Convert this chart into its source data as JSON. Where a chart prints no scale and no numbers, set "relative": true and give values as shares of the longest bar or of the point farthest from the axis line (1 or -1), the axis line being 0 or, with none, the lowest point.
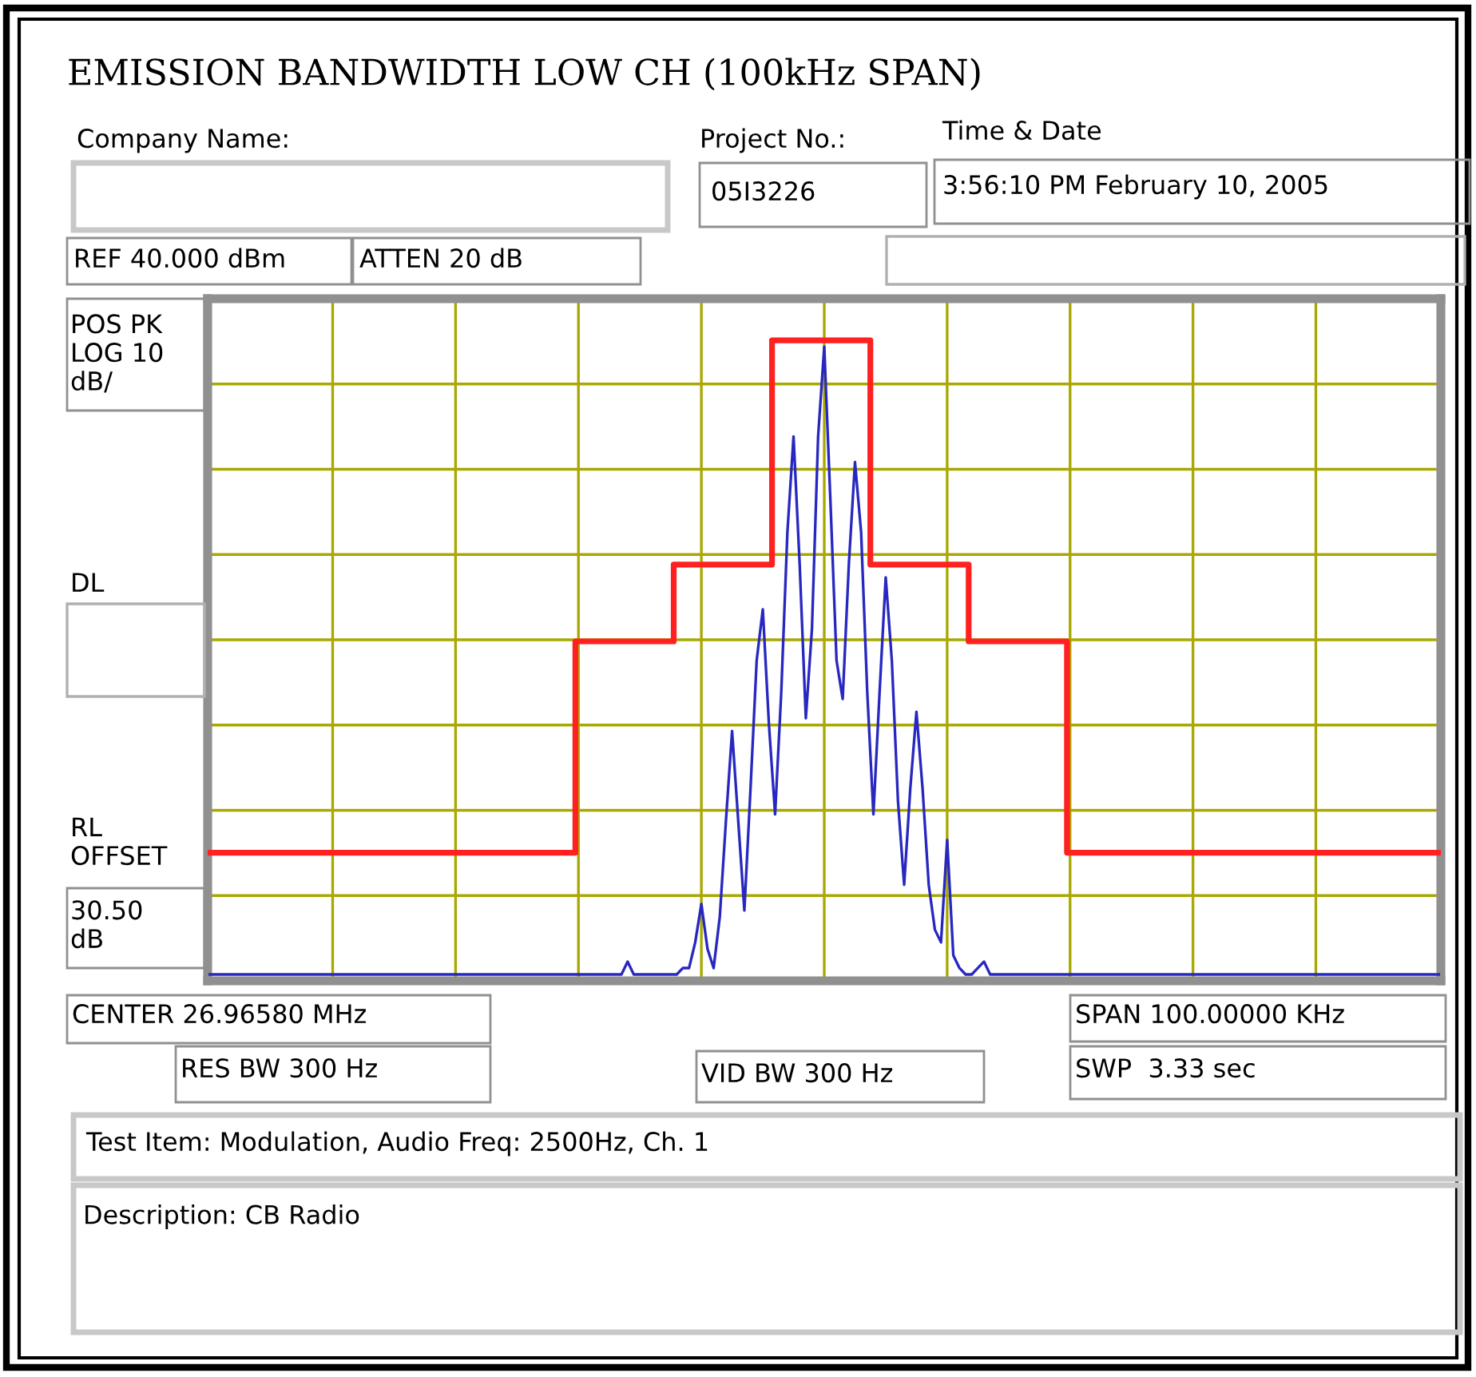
{
  "chart_data": {
    "type": "line",
    "title": "EMISSION BANDWIDTH LOW CH (100kHz SPAN)",
    "relative": true,
    "grid": true,
    "annotations": [
      "Company Name:",
      "Project No.:",
      "05I3226",
      "Time & Date",
      "3:56:10 PM February 10, 2005",
      "REF 40.000 dBm",
      "ATTEN 20 dB",
      "POS PK\nLOG 10\ndB/",
      "DL",
      "RL\nOFFSET",
      "30.50\ndB",
      "CENTER 26.96580 MHz",
      "SPAN 100.00000 KHz",
      "RES BW 300 Hz",
      "VID BW 300 Hz",
      "SWP  3.33 sec",
      "Test Item: Modulation, Audio Freq: 2500Hz, Ch. 1",
      "Description: CB Radio"
    ],
    "categories": [
      null,
      null,
      null,
      null,
      null,
      null,
      null,
      null,
      null,
      null,
      null,
      null,
      null,
      null,
      null,
      null,
      null,
      null,
      null,
      null,
      null,
      null,
      null,
      null,
      null,
      null,
      null,
      null,
      null,
      null,
      null,
      null,
      null,
      null,
      null,
      null,
      null,
      null,
      null,
      null,
      null,
      null,
      null,
      null,
      null,
      null,
      null,
      null,
      null,
      null,
      null,
      null,
      null,
      null,
      null,
      null,
      null,
      null,
      null,
      null,
      null,
      null,
      null,
      null,
      null,
      null,
      null,
      null,
      null,
      null,
      null,
      null,
      null,
      null,
      null,
      null,
      null,
      null,
      null,
      null,
      null,
      null,
      null,
      null,
      null,
      null,
      null,
      null,
      null,
      null,
      null,
      null,
      null,
      null,
      null,
      null,
      null,
      null,
      null,
      null,
      null,
      null,
      null,
      null,
      null,
      null,
      null,
      null,
      null,
      null,
      null,
      null,
      null,
      null,
      null,
      null,
      null,
      null,
      null,
      null,
      null,
      null,
      null,
      null,
      null,
      null,
      null,
      null,
      null,
      null,
      null,
      null,
      null,
      null,
      null,
      null,
      null,
      null,
      null,
      null,
      null,
      null,
      null,
      null,
      null,
      null,
      null,
      null,
      null,
      null,
      null,
      null,
      null,
      null,
      null,
      null,
      null,
      null,
      null,
      null,
      null,
      null,
      null,
      null,
      null,
      null,
      null,
      null,
      null,
      null,
      null,
      null,
      null,
      null,
      null,
      null,
      null,
      null,
      null,
      null,
      null,
      null,
      null,
      null,
      null,
      null,
      null,
      null,
      null,
      null,
      null,
      null,
      null,
      null,
      null,
      null,
      null,
      null,
      null,
      null,
      null
    ],
    "series": [
      {
        "type": "step",
        "color": "#ff2020",
        "values": [
          0.2,
          0.2,
          0.2,
          0.2,
          0.2,
          0.2,
          0.2,
          0.2,
          0.2,
          0.2,
          0.2,
          0.2,
          0.2,
          0.2,
          0.2,
          0.2,
          0.2,
          0.2,
          0.2,
          0.2,
          0.2,
          0.2,
          0.2,
          0.2,
          0.2,
          0.2,
          0.2,
          0.2,
          0.2,
          0.2,
          0.2,
          0.2,
          0.2,
          0.2,
          0.2,
          0.2,
          0.2,
          0.2,
          0.2,
          0.2,
          0.2,
          0.2,
          0.2,
          0.2,
          0.2,
          0.2,
          0.2,
          0.2,
          0.2,
          0.2,
          0.2,
          0.2,
          0.2,
          0.2,
          0.2,
          0.2,
          0.2,
          0.2,
          0.2,
          0.2,
          0.53,
          0.53,
          0.53,
          0.53,
          0.53,
          0.53,
          0.53,
          0.53,
          0.53,
          0.53,
          0.53,
          0.53,
          0.53,
          0.53,
          0.53,
          0.53,
          0.65,
          0.65,
          0.65,
          0.65,
          0.65,
          0.65,
          0.65,
          0.65,
          0.65,
          0.65,
          0.65,
          0.65,
          0.65,
          0.65,
          0.65,
          0.65,
          1,
          1,
          1,
          1,
          1,
          1,
          1,
          1,
          1,
          1,
          1,
          1,
          1,
          1,
          1,
          1,
          0.65,
          0.65,
          0.65,
          0.65,
          0.65,
          0.65,
          0.65,
          0.65,
          0.65,
          0.65,
          0.65,
          0.65,
          0.65,
          0.65,
          0.65,
          0.65,
          0.53,
          0.53,
          0.53,
          0.53,
          0.53,
          0.53,
          0.53,
          0.53,
          0.53,
          0.53,
          0.53,
          0.53,
          0.53,
          0.53,
          0.53,
          0.53,
          0.2,
          0.2,
          0.2,
          0.2,
          0.2,
          0.2,
          0.2,
          0.2,
          0.2,
          0.2,
          0.2,
          0.2,
          0.2,
          0.2,
          0.2,
          0.2,
          0.2,
          0.2,
          0.2,
          0.2,
          0.2,
          0.2,
          0.2,
          0.2,
          0.2,
          0.2,
          0.2,
          0.2,
          0.2,
          0.2,
          0.2,
          0.2,
          0.2,
          0.2,
          0.2,
          0.2,
          0.2,
          0.2,
          0.2,
          0.2,
          0.2,
          0.2,
          0.2,
          0.2,
          0.2,
          0.2,
          0.2,
          0.2,
          0.2,
          0.2,
          0.2,
          0.2,
          0.2,
          0.2,
          0.2,
          0.2,
          0.2,
          0.2,
          0.2,
          0.2,
          0.2
        ]
      },
      {
        "color": "#2828c0",
        "values": [
          0.01,
          0.01,
          0.01,
          0.01,
          0.01,
          0.01,
          0.01,
          0.01,
          0.01,
          0.01,
          0.01,
          0.01,
          0.01,
          0.01,
          0.01,
          0.01,
          0.01,
          0.01,
          0.01,
          0.01,
          0.01,
          0.01,
          0.01,
          0.01,
          0.01,
          0.01,
          0.01,
          0.01,
          0.01,
          0.01,
          0.01,
          0.01,
          0.01,
          0.01,
          0.01,
          0.01,
          0.01,
          0.01,
          0.01,
          0.01,
          0.01,
          0.01,
          0.01,
          0.01,
          0.01,
          0.01,
          0.01,
          0.01,
          0.01,
          0.01,
          0.01,
          0.01,
          0.01,
          0.01,
          0.01,
          0.01,
          0.01,
          0.01,
          0.01,
          0.01,
          0.01,
          0.01,
          0.01,
          0.01,
          0.01,
          0.01,
          0.01,
          0.01,
          0.03,
          0.01,
          0.01,
          0.01,
          0.01,
          0.01,
          0.01,
          0.01,
          0.01,
          0.02,
          0.02,
          0.06,
          0.12,
          0.05,
          0.02,
          0.1,
          0.25,
          0.39,
          0.25,
          0.11,
          0.3,
          0.5,
          0.58,
          0.4,
          0.26,
          0.45,
          0.7,
          0.85,
          0.65,
          0.41,
          0.55,
          0.85,
          0.99,
          0.75,
          0.5,
          0.44,
          0.65,
          0.81,
          0.7,
          0.45,
          0.26,
          0.45,
          0.63,
          0.5,
          0.28,
          0.15,
          0.3,
          0.42,
          0.3,
          0.15,
          0.08,
          0.06,
          0.22,
          0.04,
          0.02,
          0.01,
          0.01,
          0.02,
          0.03,
          0.01,
          0.01,
          0.01,
          0.01,
          0.01,
          0.01,
          0.01,
          0.01,
          0.01,
          0.01,
          0.01,
          0.01,
          0.01,
          0.01,
          0.01,
          0.01,
          0.01,
          0.01,
          0.01,
          0.01,
          0.01,
          0.01,
          0.01,
          0.01,
          0.01,
          0.01,
          0.01,
          0.01,
          0.01,
          0.01,
          0.01,
          0.01,
          0.01,
          0.01,
          0.01,
          0.01,
          0.01,
          0.01,
          0.01,
          0.01,
          0.01,
          0.01,
          0.01,
          0.01,
          0.01,
          0.01,
          0.01,
          0.01,
          0.01,
          0.01,
          0.01,
          0.01,
          0.01,
          0.01,
          0.01,
          0.01,
          0.01,
          0.01,
          0.01,
          0.01,
          0.01,
          0.01,
          0.01,
          0.01,
          0.01,
          0.01,
          0.01,
          0.01,
          0.01,
          0.01,
          0.01,
          0.01,
          0.01,
          0.01
        ]
      }
    ]
  }
}
